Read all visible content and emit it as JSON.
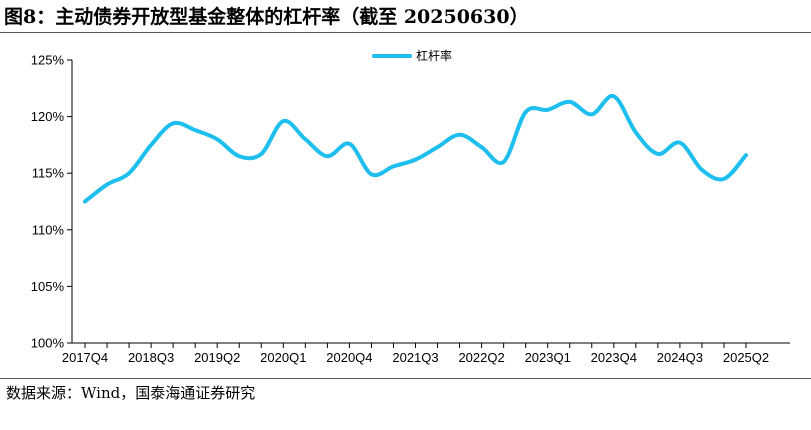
{
  "title": "图8：主动债券开放型基金整体的杠杆率（截至 20250630）",
  "source": "数据来源：Wind，国泰海通证券研究",
  "chart_data": {
    "type": "line",
    "ylim": [
      100,
      125
    ],
    "y_ticks": [
      "100%",
      "105%",
      "110%",
      "115%",
      "120%",
      "125%"
    ],
    "x_tick_labels": [
      "2017Q4",
      "2018Q3",
      "2019Q2",
      "2020Q1",
      "2020Q4",
      "2021Q3",
      "2022Q2",
      "2023Q1",
      "2023Q4",
      "2024Q3",
      "2025Q2"
    ],
    "legend_position": "top-center",
    "grid": false,
    "series": [
      {
        "name": "杠杆率",
        "color": "#1EBEEF",
        "values": [
          112.5,
          114.0,
          115.0,
          117.5,
          119.4,
          118.8,
          118.0,
          116.5,
          116.7,
          119.6,
          118.0,
          116.5,
          117.6,
          114.9,
          115.6,
          116.2,
          117.3,
          118.4,
          117.3,
          116.0,
          120.4,
          120.6,
          121.3,
          120.2,
          121.8,
          118.6,
          116.7,
          117.7,
          115.3,
          114.5,
          116.6
        ]
      }
    ]
  }
}
